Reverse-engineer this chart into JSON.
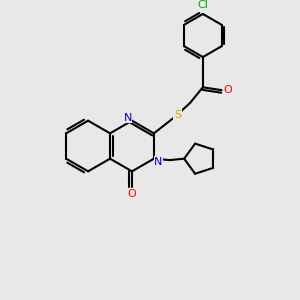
{
  "bg_color": "#e8e8e8",
  "atom_colors": {
    "N": "#0000cc",
    "O": "#ff0000",
    "S": "#ccaa00",
    "Cl": "#00aa00"
  },
  "bond_color": "#000000",
  "bond_width": 1.5
}
